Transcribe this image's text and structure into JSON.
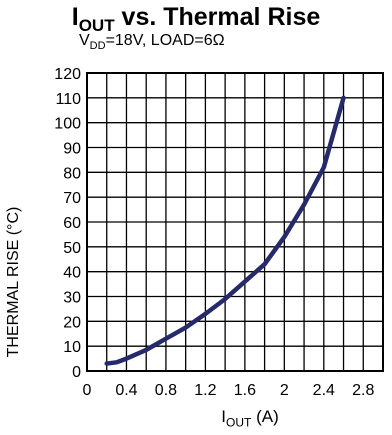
{
  "chart_data": {
    "type": "line",
    "title_main": "I",
    "title_sub": "OUT",
    "title_rest": " vs. Thermal Rise",
    "subtitle_v": "V",
    "subtitle_sub": "DD",
    "subtitle_rest": "=18V, LOAD=6Ω",
    "ylabel": "THERMAL RISE (°C)",
    "xlabel_main": "I",
    "xlabel_sub": "OUT",
    "xlabel_rest": " (A)",
    "xlim": [
      0,
      3.0
    ],
    "ylim": [
      0,
      120
    ],
    "x_ticks": [
      "0",
      "0.4",
      "0.8",
      "1.2",
      "1.6",
      "2",
      "2.4",
      "2.8"
    ],
    "x_tick_values": [
      0,
      0.4,
      0.8,
      1.2,
      1.6,
      2.0,
      2.4,
      2.8
    ],
    "y_ticks": [
      "0",
      "10",
      "20",
      "30",
      "40",
      "50",
      "60",
      "70",
      "80",
      "90",
      "100",
      "110",
      "120"
    ],
    "y_tick_values": [
      0,
      10,
      20,
      30,
      40,
      50,
      60,
      70,
      80,
      90,
      100,
      110,
      120
    ],
    "grid": true,
    "series": [
      {
        "color": "#262a6b",
        "x": [
          0.2,
          0.3,
          0.4,
          0.6,
          0.8,
          1.0,
          1.2,
          1.4,
          1.6,
          1.8,
          2.0,
          2.2,
          2.4,
          2.5,
          2.6
        ],
        "y": [
          3,
          3.5,
          5,
          8.5,
          13,
          17.5,
          23,
          29,
          36,
          43,
          54,
          67,
          82,
          96,
          110
        ]
      }
    ]
  }
}
